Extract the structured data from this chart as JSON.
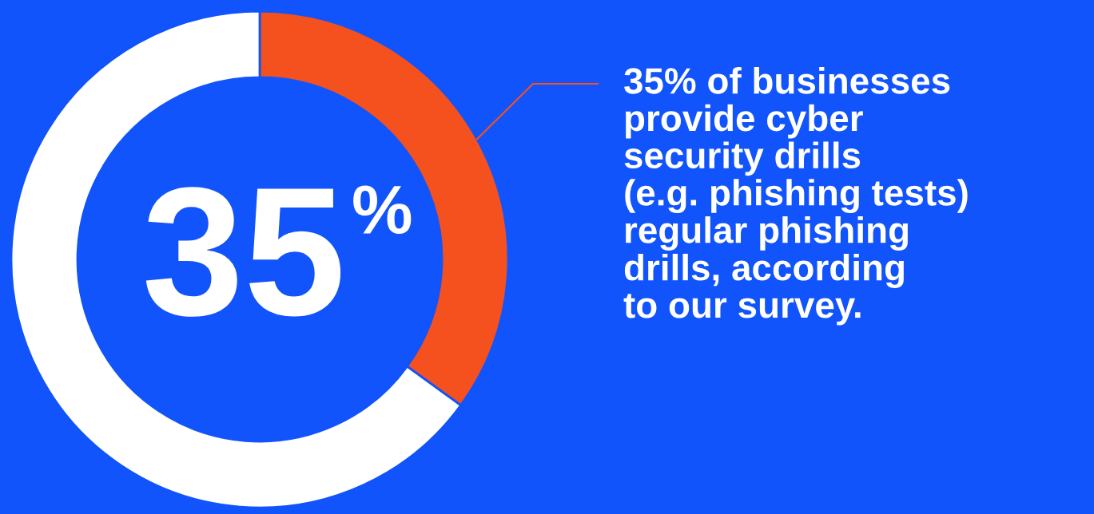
{
  "chart_data": {
    "type": "donut",
    "categories": [
      null,
      null
    ],
    "values": [
      35,
      65
    ],
    "colors": [
      "#f4511e",
      "#ffffff"
    ],
    "annotations": [
      "35$^{%}$",
      "35% of businesses\nprovide cyber\nsecurity drills\n(e.g. phishing tests)\nregular phishing\ndrills, according\nto our survey."
    ]
  }
}
